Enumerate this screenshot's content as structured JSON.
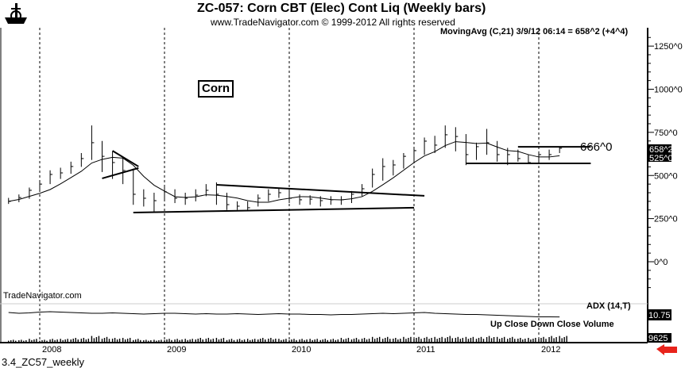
{
  "header": {
    "title": "ZC-057:  Corn CBT (Elec) Cont Liq  (Weekly bars)",
    "subtitle": "www.TradeNavigator.com © 1999-2012 All rights reserved",
    "indicator": "MovingAvg (C,21)    3/9/12 06:14 = 658^2 (+4^4)"
  },
  "labels": {
    "corn": "Corn",
    "watermark": "TradeNavigator.com",
    "adx": "ADX (14,T)",
    "volume_legend": "Up Close   Down Close   Volume",
    "footer": "3.4_ZC57_weekly",
    "resistance": "666^0"
  },
  "colors": {
    "arrow": "#e8231b",
    "ink": "#000000"
  },
  "chart_data": {
    "type": "ohlc-bar",
    "ylim": [
      -200,
      1350
    ],
    "yticks": [
      {
        "v": 0,
        "label": "0^0"
      },
      {
        "v": 250,
        "label": "250^0"
      },
      {
        "v": 500,
        "label": "500^0"
      },
      {
        "v": 750,
        "label": "750^0"
      },
      {
        "v": 1000,
        "label": "1000^0"
      },
      {
        "v": 1250,
        "label": "1250^0"
      }
    ],
    "xticks": [
      "2008",
      "2009",
      "2010",
      "2011",
      "2012"
    ],
    "last_price": "658^2",
    "hidden_price": "525^0",
    "adx_value": "10.75",
    "volume_value": "9625",
    "start": "2007-10",
    "close": [
      350,
      372,
      414,
      450,
      506,
      515,
      552,
      598,
      690,
      611,
      575,
      529,
      391,
      368,
      354,
      405,
      368,
      368,
      386,
      414,
      391,
      331,
      322,
      313,
      368,
      391,
      400,
      368,
      359,
      363,
      354,
      359,
      359,
      391,
      423,
      506,
      552,
      561,
      611,
      644,
      699,
      676,
      736,
      726,
      621,
      667,
      690,
      621,
      621,
      598,
      575,
      621,
      621,
      658
    ],
    "high": [
      370,
      390,
      430,
      470,
      530,
      545,
      580,
      630,
      790,
      700,
      640,
      600,
      540,
      420,
      400,
      440,
      420,
      400,
      420,
      450,
      460,
      400,
      350,
      350,
      390,
      420,
      430,
      410,
      390,
      385,
      380,
      380,
      380,
      410,
      450,
      540,
      600,
      590,
      630,
      660,
      720,
      730,
      790,
      780,
      740,
      690,
      770,
      700,
      660,
      650,
      620,
      640,
      650,
      662
    ],
    "low": [
      335,
      345,
      365,
      410,
      450,
      480,
      510,
      550,
      590,
      520,
      480,
      450,
      330,
      320,
      290,
      360,
      340,
      330,
      350,
      380,
      330,
      300,
      300,
      295,
      320,
      350,
      370,
      340,
      330,
      330,
      320,
      330,
      330,
      340,
      380,
      430,
      470,
      500,
      540,
      580,
      620,
      630,
      660,
      640,
      560,
      590,
      620,
      580,
      560,
      580,
      570,
      580,
      590,
      630
    ],
    "moving_average_period_months": 5,
    "trendlines": [
      {
        "from": [
          "2008-08",
          643
        ],
        "to": [
          "2008-10.5",
          552
        ]
      },
      {
        "from": [
          "2008-07",
          483
        ],
        "to": [
          "2008-10.5",
          543
        ]
      },
      {
        "from": [
          "2008-10",
          285
        ],
        "to": [
          "2011-01",
          313
        ]
      },
      {
        "from": [
          "2009-06",
          446
        ],
        "to": [
          "2011-02",
          382
        ]
      },
      {
        "from": [
          "2011-11",
          666
        ],
        "to": [
          "2012-06",
          666
        ]
      },
      {
        "from": [
          "2011-06",
          570
        ],
        "to": [
          "2012-06",
          570
        ]
      }
    ],
    "adx": [
      22,
      20,
      21,
      23,
      24,
      23,
      22,
      21,
      20,
      20,
      21,
      20,
      19,
      18,
      19,
      20,
      20,
      19,
      18,
      19,
      18,
      18,
      19,
      18,
      17,
      18,
      19,
      18,
      18,
      17,
      17,
      16,
      17,
      17,
      18,
      19,
      20,
      19,
      20,
      21,
      22,
      20,
      19,
      18,
      17,
      17,
      16,
      15,
      14,
      13,
      12,
      11,
      11,
      10.75
    ],
    "volume": [
      3,
      3,
      4,
      3,
      4,
      4,
      5,
      5,
      7,
      6,
      5,
      5,
      4,
      3,
      3,
      4,
      4,
      4,
      5,
      5,
      5,
      4,
      4,
      4,
      5,
      5,
      4,
      4,
      4,
      4,
      4,
      4,
      5,
      5,
      5,
      6,
      6,
      5,
      6,
      6,
      6,
      6,
      7,
      6,
      6,
      6,
      7,
      6,
      6,
      5,
      5,
      6,
      7,
      7
    ]
  }
}
